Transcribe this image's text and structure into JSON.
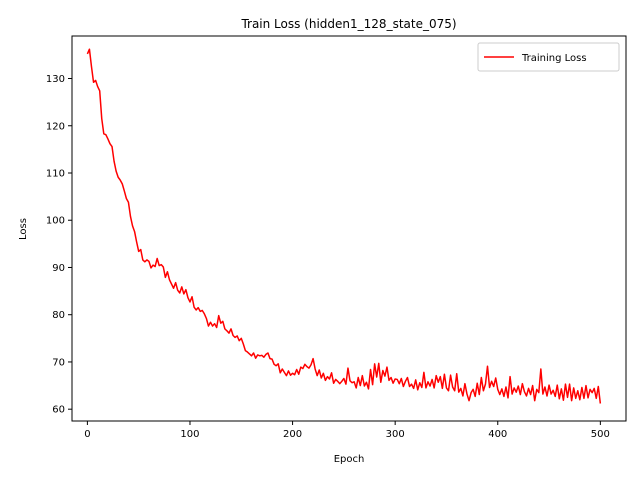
{
  "chart_data": {
    "type": "line",
    "title": "Train Loss (hidden1_128_state_075)",
    "xlabel": "Epoch",
    "ylabel": "Loss",
    "xlim": [
      -15,
      525
    ],
    "ylim": [
      57.5,
      139
    ],
    "xticks": [
      0,
      100,
      200,
      300,
      400,
      500
    ],
    "yticks": [
      60,
      70,
      80,
      90,
      100,
      110,
      120,
      130
    ],
    "grid": false,
    "legend_position": "top-right",
    "series": [
      {
        "name": "Training Loss",
        "color": "#ff0000",
        "points": [
          [
            0,
            135.2
          ],
          [
            2,
            136.2
          ],
          [
            4,
            132.5
          ],
          [
            6,
            129.2
          ],
          [
            8,
            129.6
          ],
          [
            10,
            128.3
          ],
          [
            12,
            127.4
          ],
          [
            14,
            121.5
          ],
          [
            16,
            118.3
          ],
          [
            18,
            118.1
          ],
          [
            20,
            117.2
          ],
          [
            22,
            116.2
          ],
          [
            24,
            115.6
          ],
          [
            26,
            112.5
          ],
          [
            28,
            110.4
          ],
          [
            30,
            109.1
          ],
          [
            32,
            108.5
          ],
          [
            34,
            107.7
          ],
          [
            36,
            106.2
          ],
          [
            38,
            104.6
          ],
          [
            40,
            103.8
          ],
          [
            42,
            100.8
          ],
          [
            44,
            98.8
          ],
          [
            46,
            97.6
          ],
          [
            48,
            95.4
          ],
          [
            50,
            93.4
          ],
          [
            52,
            93.8
          ],
          [
            54,
            91.6
          ],
          [
            56,
            91.2
          ],
          [
            58,
            91.6
          ],
          [
            60,
            91.3
          ],
          [
            62,
            89.9
          ],
          [
            64,
            90.5
          ],
          [
            66,
            90.2
          ],
          [
            68,
            91.9
          ],
          [
            70,
            90.4
          ],
          [
            72,
            90.6
          ],
          [
            74,
            90.1
          ],
          [
            76,
            87.9
          ],
          [
            78,
            89.1
          ],
          [
            80,
            87.4
          ],
          [
            82,
            86.5
          ],
          [
            84,
            85.6
          ],
          [
            86,
            86.8
          ],
          [
            88,
            85.2
          ],
          [
            90,
            84.6
          ],
          [
            92,
            85.9
          ],
          [
            94,
            84.4
          ],
          [
            96,
            85.3
          ],
          [
            98,
            83.6
          ],
          [
            100,
            82.7
          ],
          [
            102,
            83.8
          ],
          [
            104,
            81.6
          ],
          [
            106,
            81.0
          ],
          [
            108,
            81.5
          ],
          [
            110,
            80.7
          ],
          [
            112,
            80.9
          ],
          [
            114,
            80.2
          ],
          [
            116,
            79.2
          ],
          [
            118,
            77.6
          ],
          [
            120,
            78.4
          ],
          [
            122,
            77.6
          ],
          [
            124,
            78.1
          ],
          [
            126,
            77.3
          ],
          [
            128,
            79.8
          ],
          [
            130,
            78.2
          ],
          [
            132,
            78.6
          ],
          [
            134,
            77.0
          ],
          [
            136,
            76.6
          ],
          [
            138,
            76.1
          ],
          [
            140,
            77.0
          ],
          [
            142,
            75.6
          ],
          [
            144,
            75.2
          ],
          [
            146,
            75.5
          ],
          [
            148,
            74.5
          ],
          [
            150,
            75.0
          ],
          [
            152,
            73.8
          ],
          [
            154,
            72.4
          ],
          [
            156,
            72.1
          ],
          [
            158,
            71.7
          ],
          [
            160,
            71.3
          ],
          [
            162,
            71.9
          ],
          [
            164,
            70.8
          ],
          [
            166,
            71.5
          ],
          [
            168,
            71.3
          ],
          [
            170,
            71.4
          ],
          [
            172,
            71.0
          ],
          [
            174,
            71.6
          ],
          [
            176,
            71.9
          ],
          [
            178,
            70.7
          ],
          [
            180,
            70.6
          ],
          [
            182,
            69.5
          ],
          [
            184,
            69.2
          ],
          [
            186,
            69.6
          ],
          [
            188,
            67.7
          ],
          [
            190,
            68.5
          ],
          [
            192,
            67.8
          ],
          [
            194,
            67.1
          ],
          [
            196,
            68.1
          ],
          [
            198,
            67.2
          ],
          [
            200,
            67.6
          ],
          [
            202,
            67.3
          ],
          [
            204,
            68.4
          ],
          [
            206,
            67.4
          ],
          [
            208,
            68.9
          ],
          [
            210,
            68.6
          ],
          [
            212,
            69.5
          ],
          [
            214,
            69.0
          ],
          [
            216,
            68.7
          ],
          [
            218,
            69.4
          ],
          [
            220,
            70.7
          ],
          [
            222,
            68.5
          ],
          [
            224,
            67.1
          ],
          [
            226,
            68.3
          ],
          [
            228,
            66.6
          ],
          [
            230,
            67.6
          ],
          [
            232,
            66.1
          ],
          [
            234,
            66.9
          ],
          [
            236,
            66.4
          ],
          [
            238,
            67.7
          ],
          [
            240,
            65.5
          ],
          [
            242,
            66.3
          ],
          [
            244,
            65.9
          ],
          [
            246,
            65.4
          ],
          [
            248,
            65.9
          ],
          [
            250,
            66.5
          ],
          [
            252,
            65.3
          ],
          [
            254,
            68.7
          ],
          [
            256,
            66.0
          ],
          [
            258,
            65.6
          ],
          [
            260,
            65.8
          ],
          [
            262,
            64.5
          ],
          [
            264,
            66.7
          ],
          [
            266,
            65.0
          ],
          [
            268,
            67.1
          ],
          [
            270,
            64.9
          ],
          [
            272,
            65.7
          ],
          [
            274,
            64.3
          ],
          [
            276,
            68.4
          ],
          [
            278,
            65.2
          ],
          [
            280,
            69.6
          ],
          [
            282,
            66.8
          ],
          [
            284,
            69.7
          ],
          [
            286,
            65.7
          ],
          [
            288,
            68.2
          ],
          [
            290,
            67.0
          ],
          [
            292,
            68.9
          ],
          [
            294,
            66.1
          ],
          [
            296,
            66.7
          ],
          [
            298,
            65.5
          ],
          [
            300,
            66.4
          ],
          [
            302,
            66.3
          ],
          [
            304,
            65.4
          ],
          [
            306,
            66.5
          ],
          [
            308,
            64.8
          ],
          [
            310,
            65.9
          ],
          [
            312,
            66.7
          ],
          [
            314,
            64.8
          ],
          [
            316,
            65.3
          ],
          [
            318,
            64.4
          ],
          [
            320,
            66.2
          ],
          [
            322,
            64.1
          ],
          [
            324,
            65.6
          ],
          [
            326,
            64.6
          ],
          [
            328,
            67.8
          ],
          [
            330,
            64.5
          ],
          [
            332,
            65.8
          ],
          [
            334,
            64.9
          ],
          [
            336,
            66.3
          ],
          [
            338,
            64.5
          ],
          [
            340,
            67.1
          ],
          [
            342,
            65.7
          ],
          [
            344,
            66.9
          ],
          [
            346,
            64.4
          ],
          [
            348,
            67.4
          ],
          [
            350,
            64.5
          ],
          [
            352,
            63.9
          ],
          [
            354,
            67.2
          ],
          [
            356,
            64.7
          ],
          [
            358,
            63.9
          ],
          [
            360,
            67.5
          ],
          [
            362,
            63.6
          ],
          [
            364,
            64.4
          ],
          [
            366,
            62.8
          ],
          [
            368,
            65.4
          ],
          [
            370,
            63.2
          ],
          [
            372,
            61.8
          ],
          [
            374,
            63.5
          ],
          [
            376,
            64.2
          ],
          [
            378,
            62.7
          ],
          [
            380,
            65.5
          ],
          [
            382,
            63.1
          ],
          [
            384,
            66.7
          ],
          [
            386,
            63.9
          ],
          [
            388,
            65.3
          ],
          [
            390,
            69.1
          ],
          [
            392,
            64.6
          ],
          [
            394,
            65.9
          ],
          [
            396,
            64.8
          ],
          [
            398,
            66.6
          ],
          [
            400,
            64.2
          ],
          [
            402,
            63.1
          ],
          [
            404,
            64.3
          ],
          [
            406,
            62.7
          ],
          [
            408,
            64.7
          ],
          [
            410,
            62.4
          ],
          [
            412,
            66.9
          ],
          [
            414,
            63.2
          ],
          [
            416,
            64.5
          ],
          [
            418,
            63.6
          ],
          [
            420,
            64.9
          ],
          [
            422,
            63.1
          ],
          [
            424,
            65.4
          ],
          [
            426,
            63.7
          ],
          [
            428,
            62.8
          ],
          [
            430,
            64.4
          ],
          [
            432,
            63.1
          ],
          [
            434,
            65.0
          ],
          [
            436,
            61.8
          ],
          [
            438,
            64.2
          ],
          [
            440,
            63.5
          ],
          [
            442,
            68.5
          ],
          [
            444,
            63.2
          ],
          [
            446,
            64.7
          ],
          [
            448,
            62.8
          ],
          [
            450,
            65.1
          ],
          [
            452,
            63.2
          ],
          [
            454,
            64.0
          ],
          [
            456,
            62.7
          ],
          [
            458,
            65.1
          ],
          [
            460,
            62.2
          ],
          [
            462,
            64.3
          ],
          [
            464,
            61.9
          ],
          [
            466,
            65.3
          ],
          [
            468,
            62.5
          ],
          [
            470,
            65.3
          ],
          [
            472,
            61.8
          ],
          [
            474,
            64.5
          ],
          [
            476,
            62.3
          ],
          [
            478,
            63.9
          ],
          [
            480,
            62.0
          ],
          [
            482,
            64.6
          ],
          [
            484,
            62.3
          ],
          [
            486,
            65.0
          ],
          [
            488,
            62.4
          ],
          [
            490,
            64.2
          ],
          [
            492,
            63.5
          ],
          [
            494,
            64.4
          ],
          [
            496,
            62.3
          ],
          [
            498,
            64.8
          ],
          [
            500,
            61.2
          ]
        ]
      }
    ]
  }
}
